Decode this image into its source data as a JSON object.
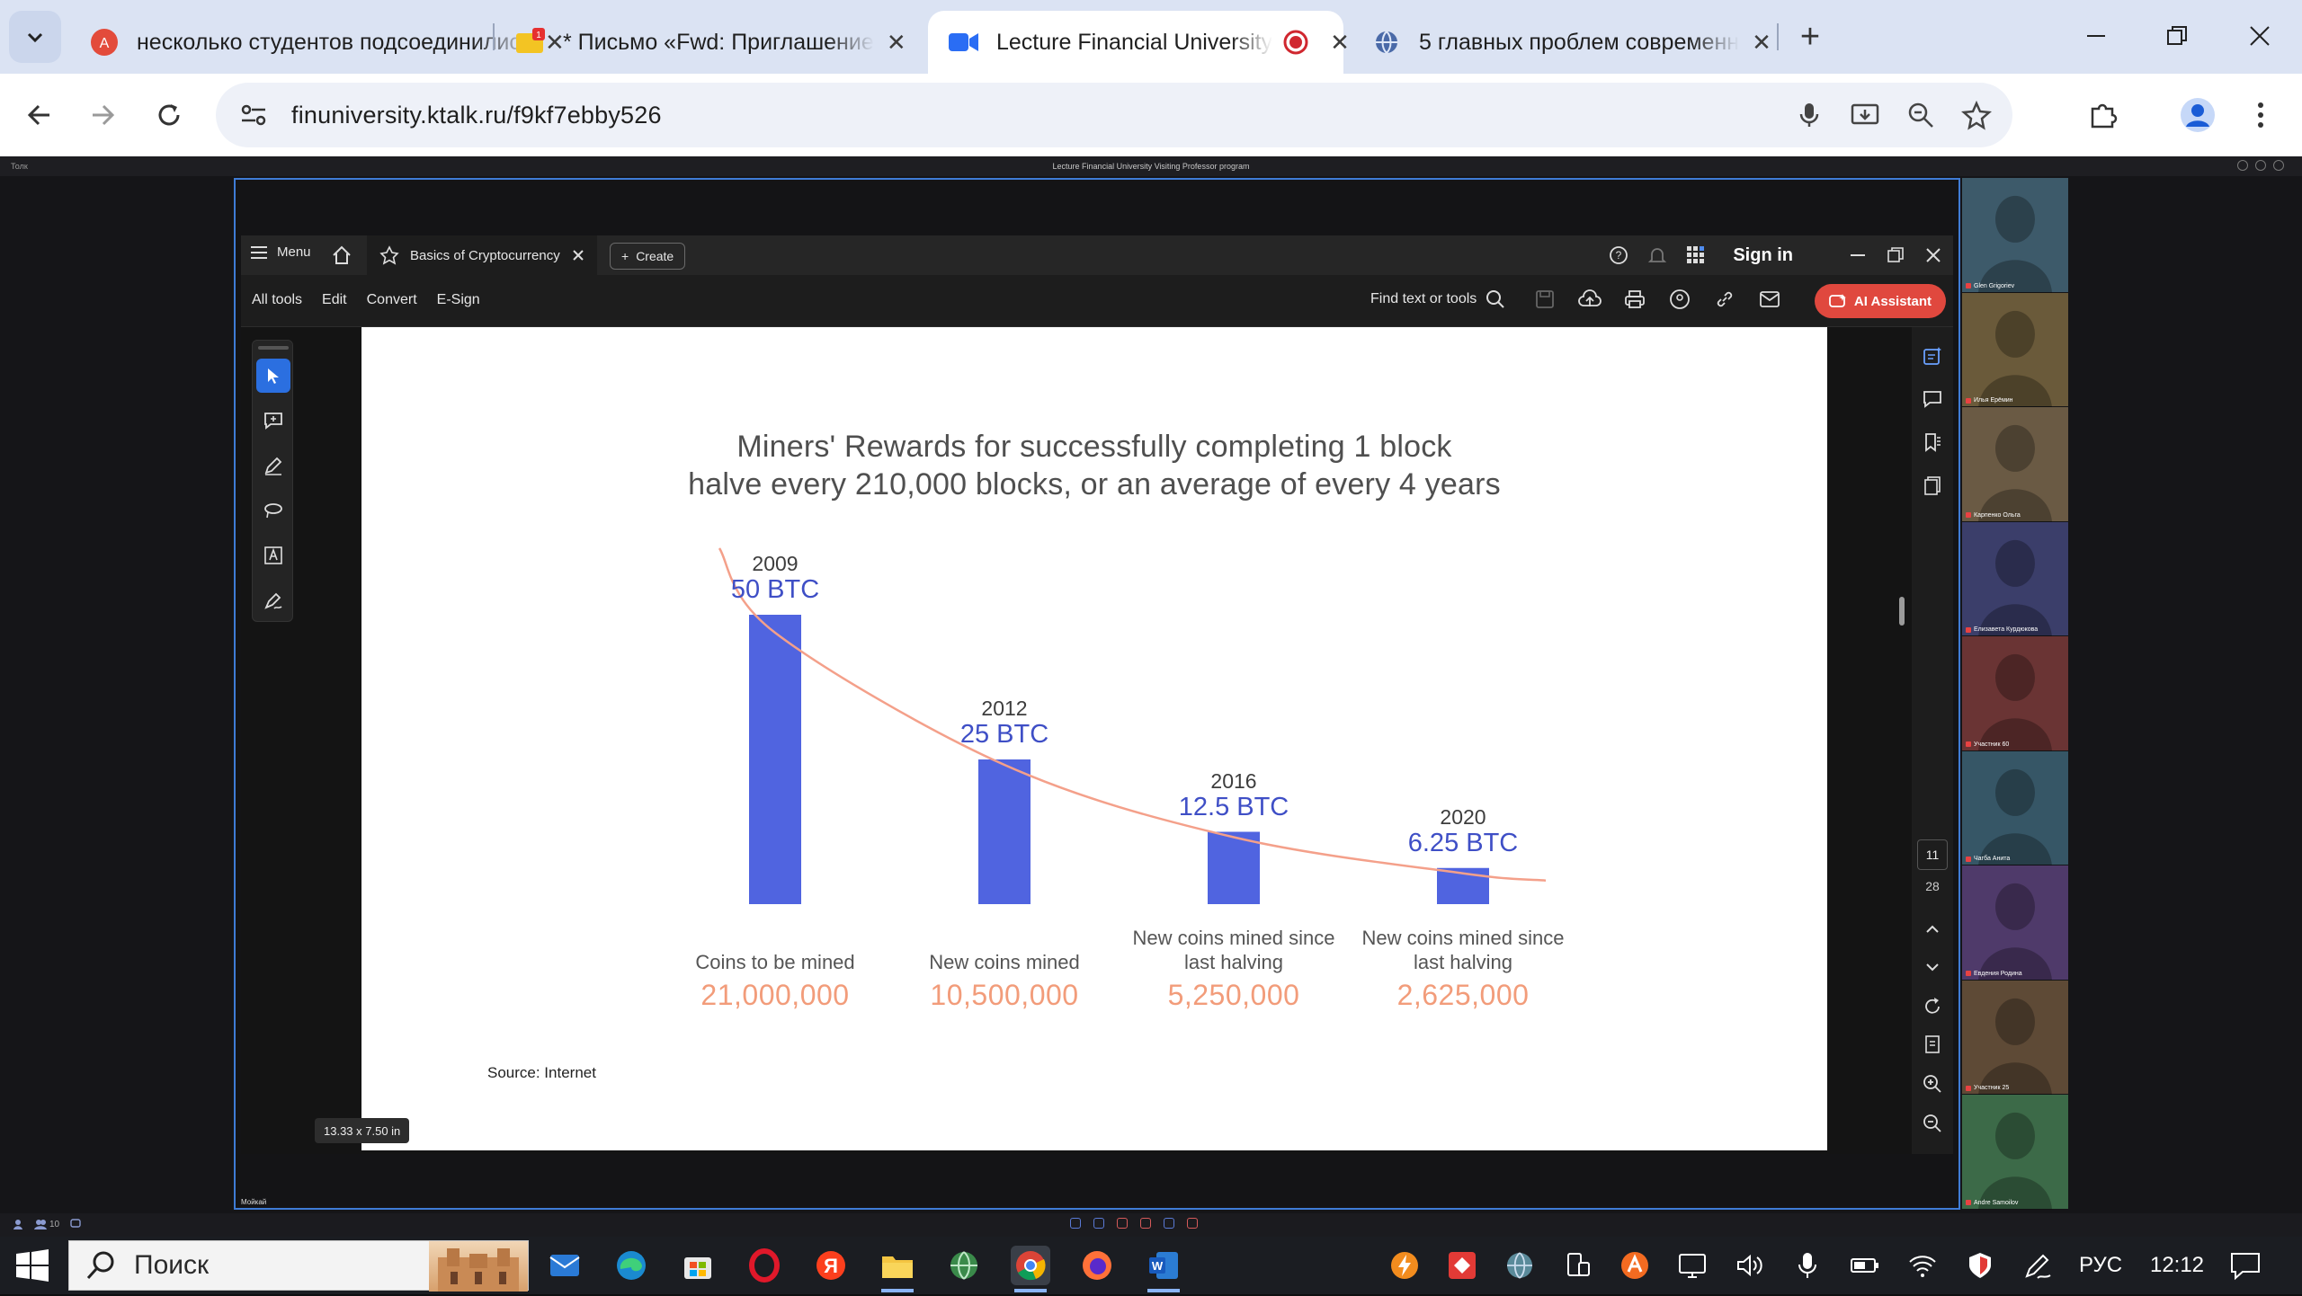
{
  "browser": {
    "tabs": [
      {
        "title": "несколько студентов подсоединились",
        "favicon": "translate-icon",
        "active": false
      },
      {
        "title": "* Письмо «Fwd: Приглашение",
        "favicon": "mail-icon",
        "badge": "1",
        "active": false
      },
      {
        "title": "Lecture Financial University",
        "favicon": "video-icon",
        "active": true
      },
      {
        "title": "5 главных проблем современн",
        "favicon": "globe-icon",
        "active": false
      }
    ],
    "url": "finuniversity.ktalk.ru/f9kf7ebby526"
  },
  "conference": {
    "top_left": "Толк",
    "top_center": "Lecture Financial University Visiting Professor program",
    "presenter_label": "Мойкай",
    "participants": [
      {
        "name": "Glen Grigoriev",
        "bg": "#3d5a6a"
      },
      {
        "name": "Илья Ерёмин",
        "bg": "#6a5a3a"
      },
      {
        "name": "Карпенко Ольга",
        "bg": "#6a5a44"
      },
      {
        "name": "Елизавета Курдюкова",
        "bg": "#3b3e6a"
      },
      {
        "name": "Участник 60",
        "bg": "#6a3434"
      },
      {
        "name": "Чагба Анита",
        "bg": "#365666"
      },
      {
        "name": "Евдения Родина",
        "bg": "#4f3a6a"
      },
      {
        "name": "Участник 25",
        "bg": "#5e4a36"
      },
      {
        "name": "Andre Samoilov",
        "bg": "#3c6a48"
      }
    ],
    "status_count": "10"
  },
  "acrobat": {
    "menu_label": "Menu",
    "doc_tab": "Basics of Cryptocurrency",
    "create_label": "Create",
    "sign_in": "Sign in",
    "tools": [
      "All tools",
      "Edit",
      "Convert",
      "E-Sign"
    ],
    "find_placeholder": "Find text or tools",
    "ai_label": "AI Assistant",
    "page_current": "11",
    "page_total": "28",
    "page_size": "13.33 x 7.50 in"
  },
  "slide": {
    "title_line1": "Miners' Rewards for successfully completing 1 block",
    "title_line2": "halve every 210,000 blocks, or an average of every 4 years",
    "source": "Source: Internet",
    "accent_color": "#5064e0",
    "curve_color": "#f4a08a"
  },
  "chart_data": {
    "type": "bar",
    "categories": [
      "2009",
      "2012",
      "2016",
      "2020"
    ],
    "values": [
      50,
      25,
      12.5,
      6.25
    ],
    "value_labels": [
      "50 BTC",
      "25 BTC",
      "12.5 BTC",
      "6.25 BTC"
    ],
    "captions": [
      "Coins to be mined",
      "New coins mined",
      "New coins mined since last halving",
      "New coins mined since last halving"
    ],
    "coin_counts": [
      "21,000,000",
      "10,500,000",
      "5,250,000",
      "2,625,000"
    ],
    "title": "Miners' Rewards for successfully completing 1 block halve every 210,000 blocks, or an average of every 4 years",
    "trend_line": true
  },
  "taskbar": {
    "search_placeholder": "Поиск",
    "lang": "РУС",
    "time": "12:12"
  }
}
